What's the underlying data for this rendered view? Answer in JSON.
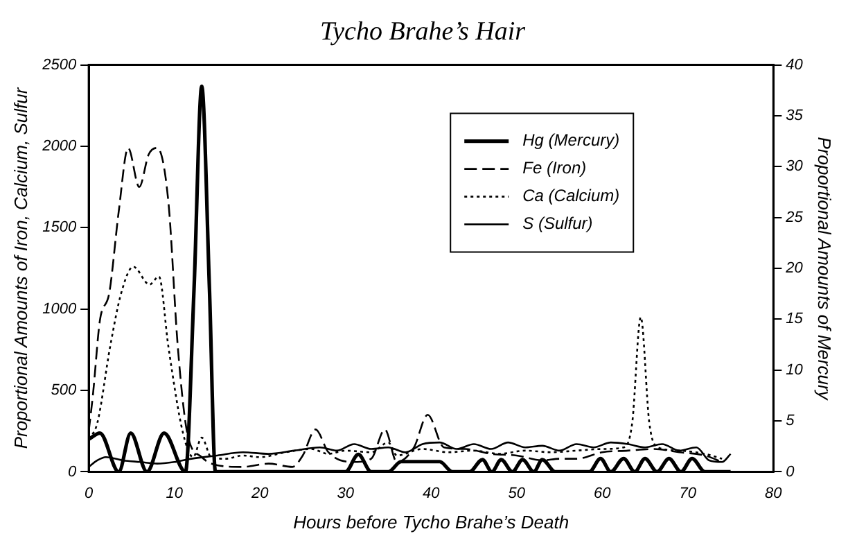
{
  "chart_data": {
    "type": "line",
    "title": "Tycho Brahe’s Hair",
    "xlabel": "Hours before Tycho Brahe’s Death",
    "ylabel": "Proportional Amounts of Iron, Calcium, Sulfur",
    "y2label": "Proportional Amounts of Mercury",
    "xlim": [
      0,
      80
    ],
    "xticks": [
      0,
      10,
      20,
      30,
      40,
      50,
      60,
      70,
      80
    ],
    "ylim": [
      0,
      2500
    ],
    "yticks": [
      0,
      500,
      1000,
      1500,
      2000,
      2500
    ],
    "y2lim": [
      0,
      40
    ],
    "y2ticks": [
      0,
      5,
      10,
      15,
      20,
      25,
      30,
      35,
      40
    ],
    "grid": false,
    "legend": "top",
    "marker": "none",
    "series": [
      {
        "name": "Hg (Mercury)",
        "color": "#000000",
        "axis": "y2",
        "line_style": "solid",
        "x": [
          0,
          1.3,
          3.5,
          4.9,
          6.8,
          8.8,
          11.3,
          12.3,
          13.2,
          14.1,
          14.8,
          16,
          20,
          25,
          30,
          31.5,
          33,
          35,
          36.5,
          41,
          42.5,
          44.5,
          46,
          47.1,
          48.2,
          49.5,
          50.7,
          52,
          53,
          54.5,
          57,
          58.5,
          59.8,
          61,
          62.5,
          63.8,
          65,
          66.4,
          67.8,
          69.2,
          70.5,
          72,
          75
        ],
        "values": [
          3.2,
          3.8,
          0,
          3.8,
          0,
          3.8,
          0,
          18,
          37.9,
          18,
          0,
          0,
          0,
          0,
          0,
          1.7,
          0,
          0,
          1,
          1,
          0,
          0,
          1.2,
          0,
          1.2,
          0,
          1.2,
          0,
          1.2,
          0,
          0,
          0,
          1.3,
          0,
          1.3,
          0,
          1.3,
          0,
          1.3,
          0,
          1.3,
          0,
          0
        ]
      },
      {
        "name": "Fe (Iron)",
        "color": "#000000",
        "axis": "y",
        "line_style": "dashed",
        "x": [
          0,
          0.5,
          1.3,
          2.4,
          3.5,
          4.6,
          5.9,
          7,
          8,
          9.3,
          10.4,
          11.5,
          13.2,
          15,
          18,
          21,
          23.8,
          25,
          26.5,
          28,
          31,
          33,
          34.6,
          36,
          38,
          39.6,
          41.5,
          44,
          47,
          50,
          53,
          55,
          57,
          60,
          63,
          66,
          69,
          72,
          74
        ],
        "values": [
          250,
          480,
          930,
          1100,
          1600,
          1990,
          1750,
          1950,
          1990,
          1660,
          770,
          240,
          90,
          40,
          30,
          50,
          30,
          100,
          260,
          120,
          60,
          80,
          260,
          60,
          150,
          350,
          150,
          140,
          110,
          100,
          70,
          80,
          80,
          120,
          130,
          140,
          120,
          100,
          60
        ]
      },
      {
        "name": "Ca (Calcium)",
        "color": "#000000",
        "axis": "y",
        "line_style": "dotted",
        "x": [
          0,
          1,
          2.5,
          3.8,
          5.2,
          7.1,
          8.2,
          9.3,
          11,
          12.2,
          13.2,
          14.3,
          16,
          18,
          20,
          23,
          26,
          28,
          30,
          33,
          35,
          36,
          39,
          42,
          45,
          48,
          51,
          54,
          57,
          60,
          62.5,
          63.5,
          64.5,
          65.5,
          66.5,
          69,
          72,
          74
        ],
        "values": [
          200,
          300,
          770,
          1100,
          1260,
          1150,
          1200,
          770,
          240,
          90,
          210,
          90,
          80,
          100,
          90,
          120,
          140,
          110,
          130,
          120,
          180,
          100,
          140,
          120,
          130,
          110,
          130,
          120,
          130,
          140,
          150,
          300,
          950,
          300,
          150,
          130,
          110,
          80
        ]
      },
      {
        "name": "S (Sulfur)",
        "color": "#000000",
        "axis": "y",
        "line_style": "solid",
        "x": [
          0,
          1,
          2,
          4,
          6,
          8,
          10,
          12,
          15,
          18,
          21,
          24,
          27,
          29,
          31,
          33,
          35,
          37,
          39,
          41,
          43,
          45,
          47,
          49,
          51,
          53,
          55,
          57,
          59,
          61,
          63,
          65,
          67,
          69,
          71,
          72.5,
          74,
          75
        ],
        "values": [
          30,
          70,
          90,
          70,
          60,
          50,
          60,
          80,
          100,
          120,
          110,
          130,
          150,
          130,
          170,
          140,
          150,
          120,
          170,
          180,
          140,
          170,
          140,
          180,
          150,
          160,
          130,
          170,
          150,
          180,
          170,
          150,
          170,
          130,
          150,
          70,
          60,
          110
        ]
      }
    ]
  }
}
